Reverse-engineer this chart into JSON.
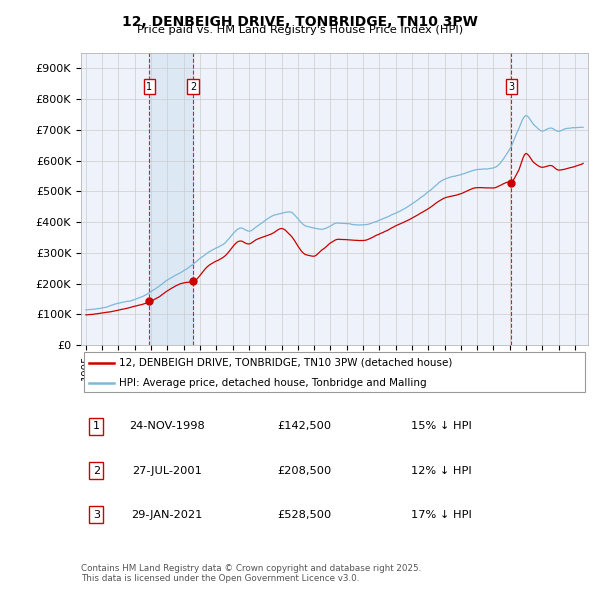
{
  "title": "12, DENBEIGH DRIVE, TONBRIDGE, TN10 3PW",
  "subtitle": "Price paid vs. HM Land Registry's House Price Index (HPI)",
  "ylabel_ticks": [
    "£0",
    "£100K",
    "£200K",
    "£300K",
    "£400K",
    "£500K",
    "£600K",
    "£700K",
    "£800K",
    "£900K"
  ],
  "ytick_values": [
    0,
    100000,
    200000,
    300000,
    400000,
    500000,
    600000,
    700000,
    800000,
    900000
  ],
  "ylim": [
    0,
    950000
  ],
  "xlim_start": 1994.7,
  "xlim_end": 2025.8,
  "hpi_color": "#7db8d8",
  "price_color": "#cc0000",
  "sale_color": "#cc0000",
  "vline_color": "#cc0000",
  "grid_color": "#cccccc",
  "bg_color": "#eef2fa",
  "shade_color": "#dde8f5",
  "legend_label_red": "12, DENBEIGH DRIVE, TONBRIDGE, TN10 3PW (detached house)",
  "legend_label_blue": "HPI: Average price, detached house, Tonbridge and Malling",
  "sales": [
    {
      "num": 1,
      "date_dec": 1998.9,
      "price": 142500
    },
    {
      "num": 2,
      "date_dec": 2001.57,
      "price": 208500
    },
    {
      "num": 3,
      "date_dec": 2021.08,
      "price": 528500
    }
  ],
  "table_rows": [
    {
      "num": "1",
      "date": "24-NOV-1998",
      "price": "£142,500",
      "pct": "15% ↓ HPI"
    },
    {
      "num": "2",
      "date": "27-JUL-2001",
      "price": "£208,500",
      "pct": "12% ↓ HPI"
    },
    {
      "num": "3",
      "date": "29-JAN-2021",
      "price": "£528,500",
      "pct": "17% ↓ HPI"
    }
  ],
  "footnote": "Contains HM Land Registry data © Crown copyright and database right 2025.\nThis data is licensed under the Open Government Licence v3.0."
}
